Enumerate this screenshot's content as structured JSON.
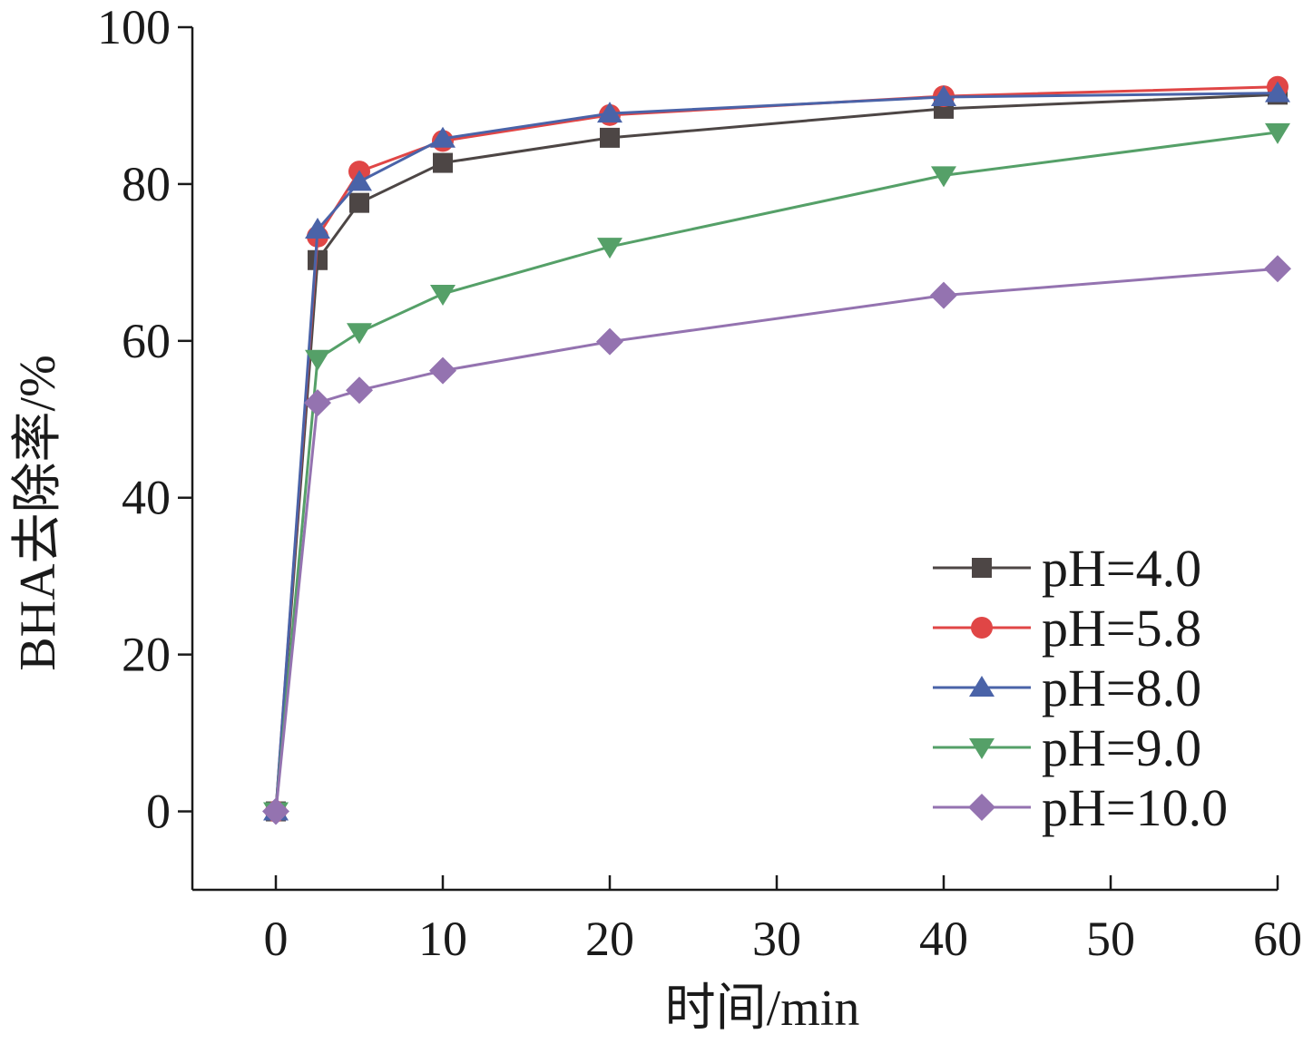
{
  "chart_data": {
    "type": "line",
    "xlabel": "时间/min",
    "ylabel": "BHA去除率/%",
    "xlim": [
      -5,
      60
    ],
    "ylim": [
      -10,
      100
    ],
    "xticks": [
      0,
      10,
      20,
      30,
      40,
      50,
      60
    ],
    "yticks": [
      0,
      20,
      40,
      60,
      80,
      100
    ],
    "grid": false,
    "legend_position": "bottom-right",
    "x": [
      0,
      2.5,
      5,
      10,
      20,
      40,
      60
    ],
    "series": [
      {
        "name": "pH=4.0",
        "color": "#4d4645",
        "marker": "square",
        "values": [
          0,
          70.3,
          77.6,
          82.7,
          85.9,
          89.6,
          91.4
        ]
      },
      {
        "name": "pH=5.8",
        "color": "#e04646",
        "marker": "circle",
        "values": [
          0,
          73.3,
          81.6,
          85.5,
          88.8,
          91.2,
          92.4
        ]
      },
      {
        "name": "pH=8.0",
        "color": "#4a63a8",
        "marker": "triangle-up",
        "values": [
          0,
          74.2,
          80.3,
          85.8,
          89.0,
          91.1,
          91.6
        ]
      },
      {
        "name": "pH=9.0",
        "color": "#55a068",
        "marker": "triangle-down",
        "values": [
          0,
          57.7,
          61.1,
          66.0,
          72.0,
          81.1,
          86.6
        ]
      },
      {
        "name": "pH=10.0",
        "color": "#9473b0",
        "marker": "diamond",
        "values": [
          0,
          52.1,
          53.7,
          56.2,
          59.9,
          65.8,
          69.2
        ]
      }
    ]
  }
}
